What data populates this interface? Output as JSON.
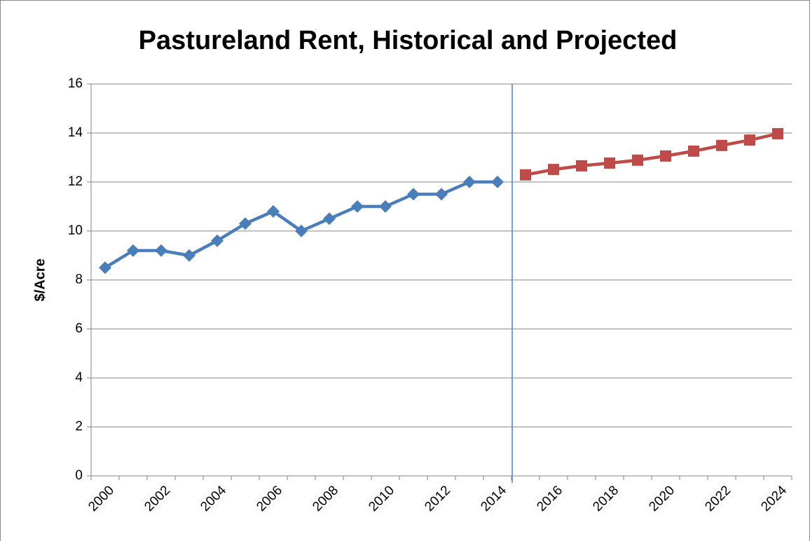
{
  "chart_data": {
    "type": "line",
    "title": "Pastureland Rent, Historical and Projected",
    "y_label": "$/Acre",
    "categories": [
      "2000",
      null,
      "2002",
      null,
      "2004",
      null,
      "2006",
      null,
      "2008",
      null,
      "2010",
      null,
      "2012",
      null,
      "2014",
      null,
      "2016",
      null,
      "2018",
      null,
      "2020",
      null,
      "2022",
      null,
      "2024"
    ],
    "series": [
      {
        "color": "#4a7ebb",
        "marker": "diamond",
        "values": [
          8.5,
          9.2,
          9.2,
          9.0,
          9.6,
          10.3,
          10.8,
          10.0,
          10.5,
          11.0,
          11.0,
          11.5,
          11.5,
          12.0,
          12.0,
          null,
          null,
          null,
          null,
          null,
          null,
          null,
          null,
          null,
          null
        ]
      },
      {
        "color": "#be4b48",
        "marker": "square",
        "values": [
          null,
          null,
          null,
          null,
          null,
          null,
          null,
          null,
          null,
          null,
          null,
          null,
          null,
          null,
          null,
          12.29,
          12.51,
          12.66,
          12.77,
          12.89,
          13.06,
          13.26,
          13.49,
          13.71,
          13.97
        ]
      }
    ],
    "ylim": [
      0,
      16
    ],
    "yticks": [
      0,
      2,
      4,
      6,
      8,
      10,
      12,
      14,
      16
    ],
    "grid": true
  }
}
